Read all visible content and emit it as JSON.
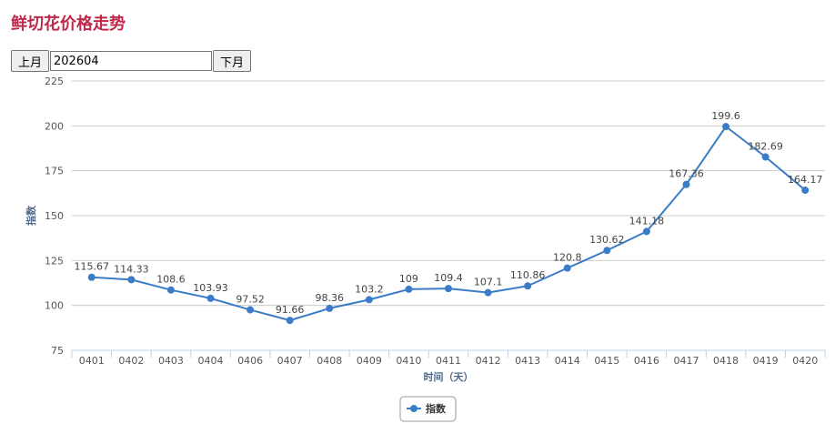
{
  "page": {
    "title": "鲜切花价格走势"
  },
  "month_nav": {
    "prev_label": "上月",
    "month_value": "202604",
    "next_label": "下月"
  },
  "chart_data": {
    "type": "line",
    "title": "",
    "xlabel": "时间（天）",
    "ylabel": "指数",
    "ylim": [
      75,
      225
    ],
    "yticks": [
      75,
      100,
      125,
      150,
      175,
      200,
      225
    ],
    "grid": true,
    "legend_position": "bottom-center",
    "categories": [
      "0401",
      "0402",
      "0403",
      "0404",
      "0406",
      "0407",
      "0408",
      "0409",
      "0410",
      "0411",
      "0412",
      "0413",
      "0414",
      "0415",
      "0416",
      "0417",
      "0418",
      "0419",
      "0420"
    ],
    "series": [
      {
        "name": "指数",
        "color": "#3a7cc7",
        "values": [
          115.67,
          114.33,
          108.6,
          103.93,
          97.52,
          91.66,
          98.36,
          103.2,
          109,
          109.4,
          107.1,
          110.86,
          120.8,
          130.62,
          141.18,
          167.36,
          199.6,
          182.69,
          164.17
        ],
        "labels": [
          "115.67",
          "114.33",
          "108.6",
          "103.93",
          "97.52",
          "91.66",
          "98.36",
          "103.2",
          "109",
          "109.4",
          "107.1",
          "110.86",
          "120.8",
          "130.62",
          "141.18",
          "167.36",
          "199.6",
          "182.69",
          "164.17"
        ]
      }
    ]
  }
}
